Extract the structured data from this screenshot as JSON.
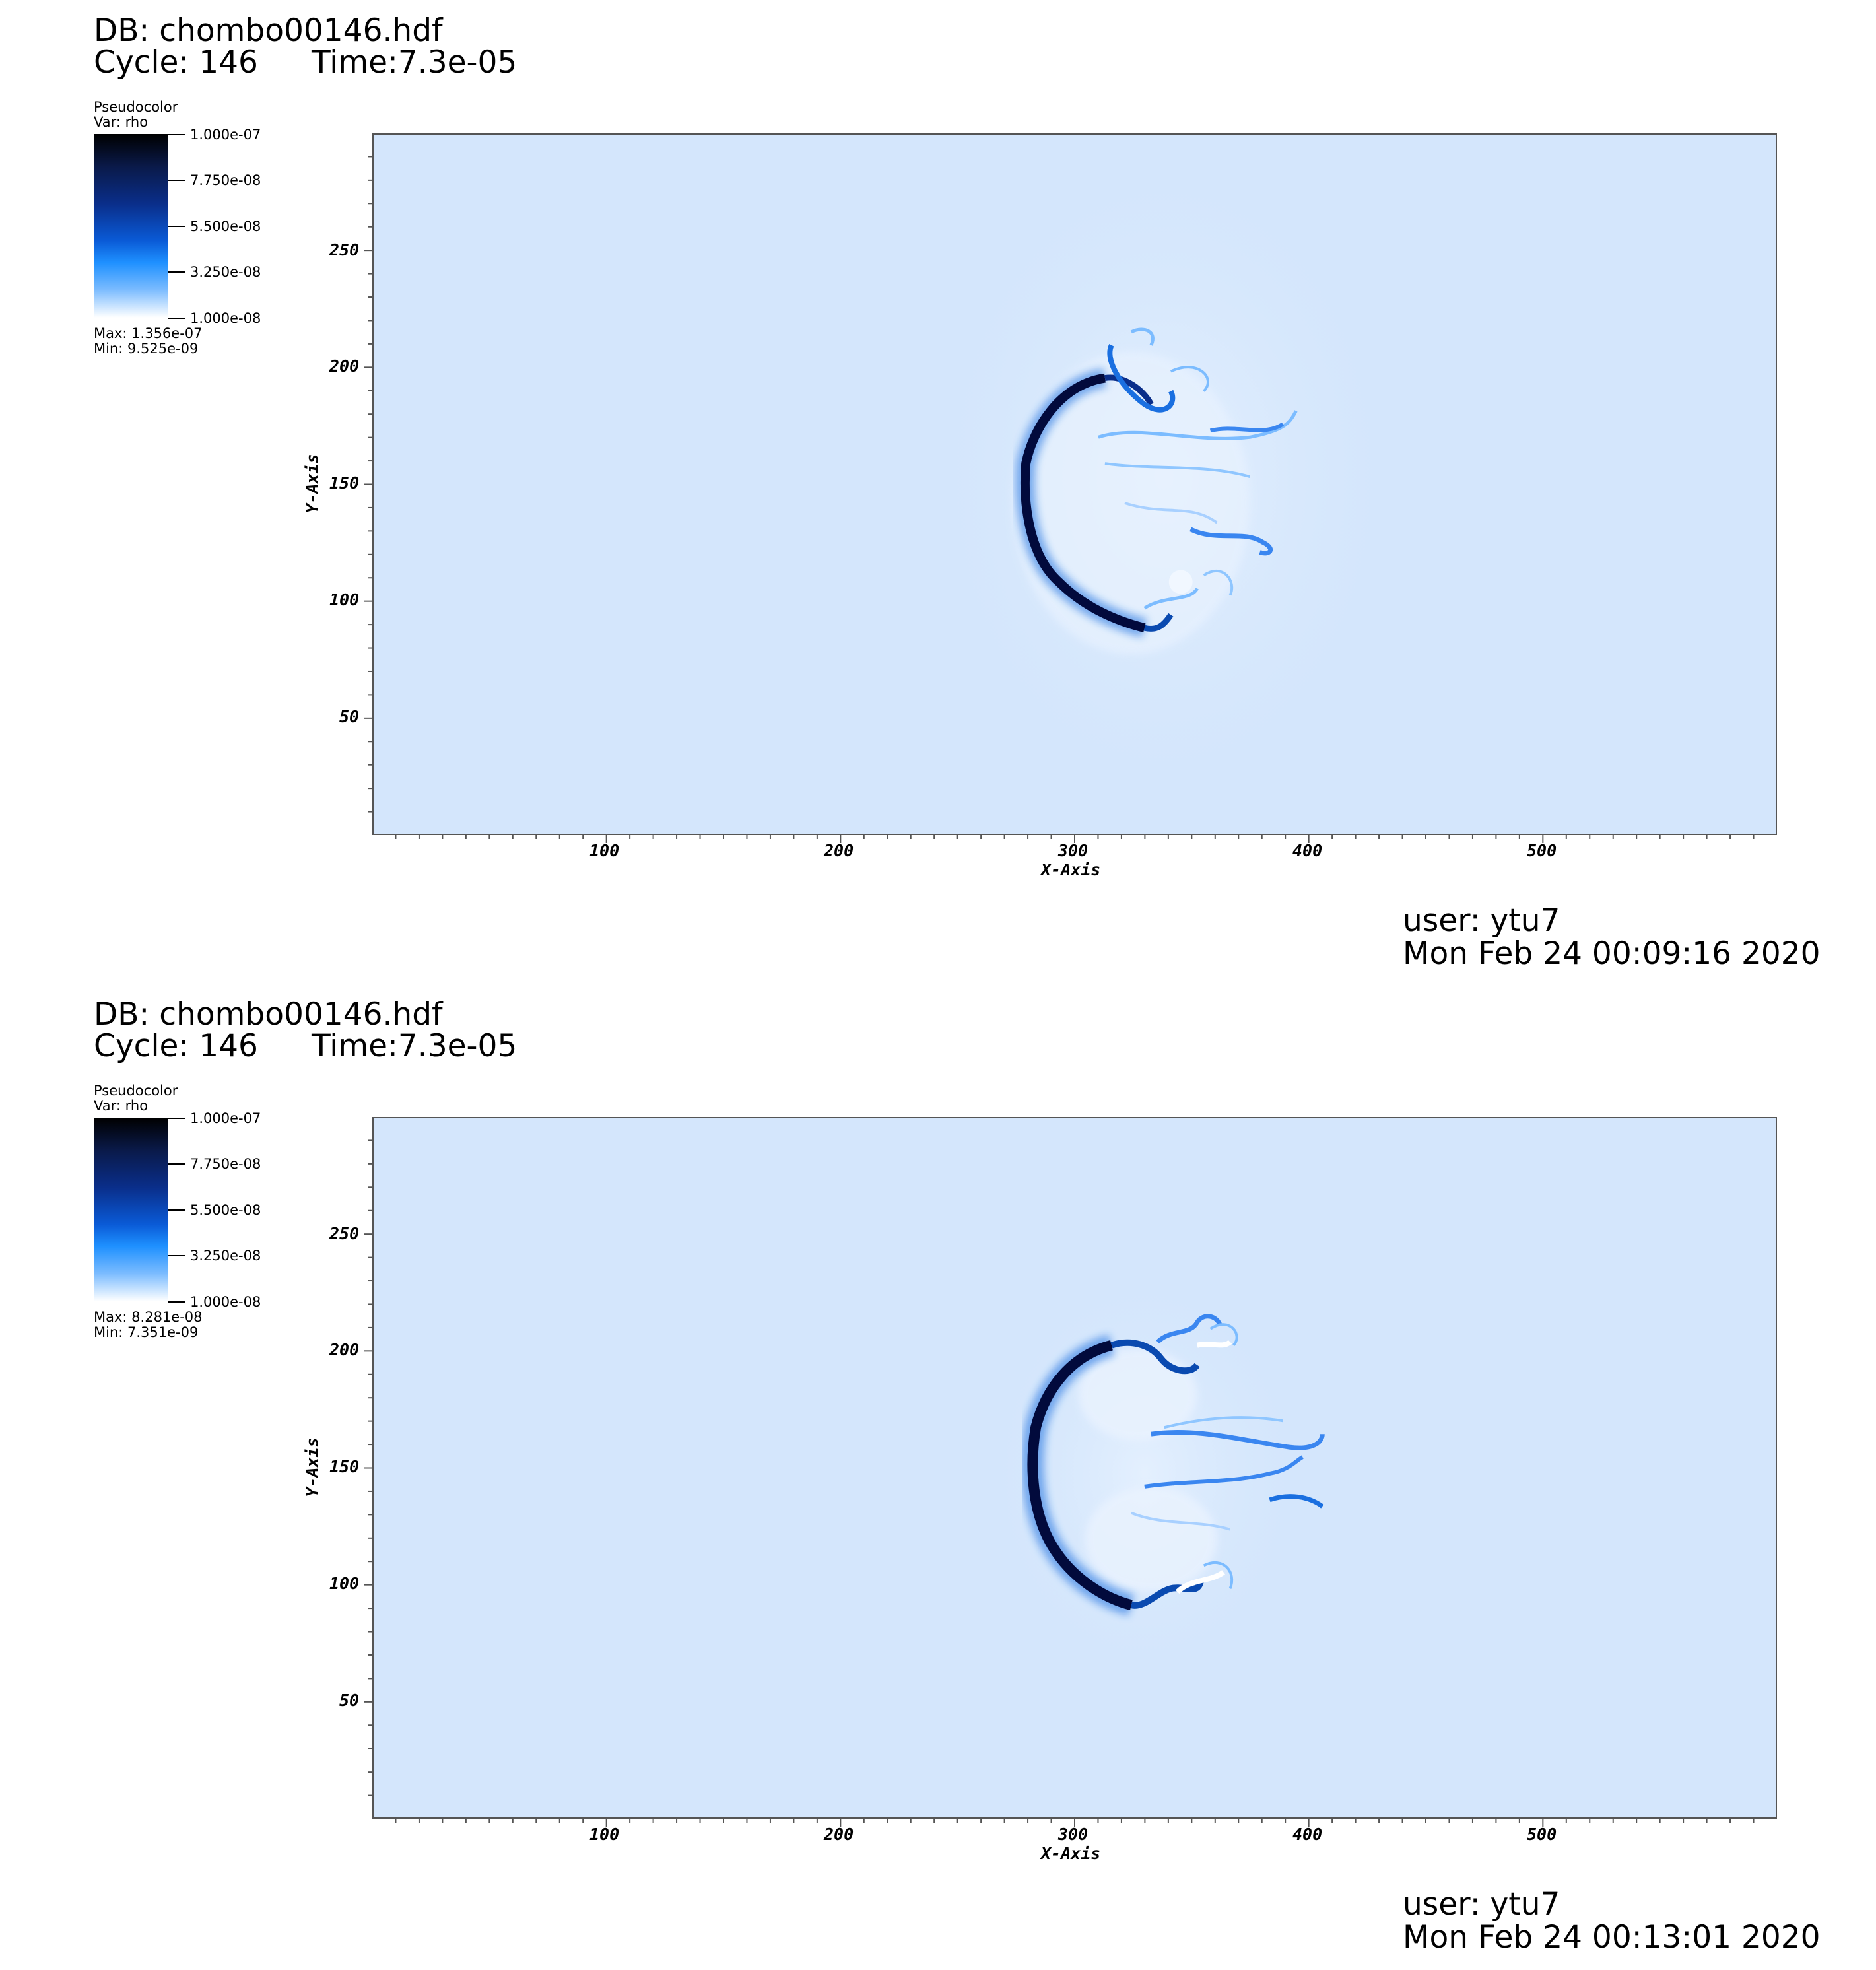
{
  "panels": [
    {
      "db": "DB: chombo00146.hdf",
      "cycle": "Cycle: 146",
      "time": "Time:7.3e-05",
      "legend": {
        "title": "Pseudocolor",
        "var": "Var: rho",
        "ticks": [
          "1.000e-07",
          "7.750e-08",
          "5.500e-08",
          "3.250e-08",
          "1.000e-08"
        ],
        "max": "Max:  1.356e-07",
        "min": "Min:  9.525e-09"
      },
      "user": "user: ytu7",
      "date": "Mon Feb 24 00:09:16 2020"
    },
    {
      "db": "DB: chombo00146.hdf",
      "cycle": "Cycle: 146",
      "time": "Time:7.3e-05",
      "legend": {
        "title": "Pseudocolor",
        "var": "Var: rho",
        "ticks": [
          "1.000e-07",
          "7.750e-08",
          "5.500e-08",
          "3.250e-08",
          "1.000e-08"
        ],
        "max": "Max:  8.281e-08",
        "min": "Min:  7.351e-09"
      },
      "user": "user: ytu7",
      "date": "Mon Feb 24 00:13:01 2020"
    }
  ],
  "chart_data": [
    {
      "type": "heatmap",
      "title": "DB: chombo00146.hdf",
      "xlabel": "X-Axis",
      "ylabel": "Y-Axis",
      "x_ticks": [
        100,
        200,
        300,
        400,
        500
      ],
      "y_ticks": [
        50,
        100,
        150,
        200,
        250
      ],
      "xlim": [
        0,
        600
      ],
      "ylim": [
        0,
        300
      ],
      "variable": "rho",
      "colorbar_range": [
        1e-08,
        1e-07
      ],
      "colors": {
        "background": "#d4e6fc",
        "front": "#020a3c",
        "mid": "#1a6fe0"
      }
    },
    {
      "type": "heatmap",
      "title": "DB: chombo00146.hdf",
      "xlabel": "X-Axis",
      "ylabel": "Y-Axis",
      "x_ticks": [
        100,
        200,
        300,
        400,
        500
      ],
      "y_ticks": [
        50,
        100,
        150,
        200,
        250
      ],
      "xlim": [
        0,
        600
      ],
      "ylim": [
        0,
        300
      ],
      "variable": "rho",
      "colorbar_range": [
        1e-08,
        1e-07
      ],
      "colors": {
        "background": "#d4e6fc",
        "front": "#020a3c",
        "mid": "#1a6fe0"
      }
    }
  ]
}
